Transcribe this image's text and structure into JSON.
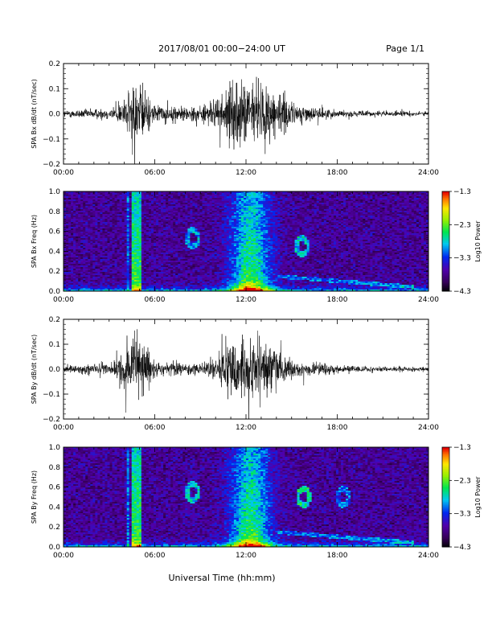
{
  "header": {
    "title": "2017/08/01   00:00−24:00 UT",
    "page": "Page 1/1"
  },
  "footer": {
    "xlabel": "Universal Time (hh:mm)"
  },
  "colors": {
    "trace": "#000000",
    "axis": "#000000"
  },
  "chart_data": [
    {
      "type": "line",
      "ylabel": "SPA Bx dB/dt (nT/sec)",
      "xlim_hours": [
        0,
        24
      ],
      "x_ticks": [
        "00:00",
        "06:00",
        "12:00",
        "18:00",
        "24:00"
      ],
      "ylim": [
        -0.2,
        0.2
      ],
      "y_ticks": [
        "0.2",
        "0.1",
        "0.0",
        "−0.1",
        "−0.2"
      ],
      "envelope": {
        "hours": [
          0,
          1,
          2,
          3,
          3.5,
          4,
          4.5,
          5,
          5.5,
          6,
          7,
          8,
          9,
          10,
          10.5,
          11,
          11.5,
          12,
          12.5,
          13,
          13.5,
          14,
          14.5,
          15,
          16,
          17,
          18,
          19,
          20,
          21,
          22,
          23,
          24
        ],
        "amplitude": [
          0.025,
          0.03,
          0.035,
          0.04,
          0.06,
          0.1,
          0.2,
          0.22,
          0.14,
          0.06,
          0.05,
          0.05,
          0.06,
          0.1,
          0.14,
          0.2,
          0.22,
          0.22,
          0.21,
          0.2,
          0.2,
          0.18,
          0.12,
          0.08,
          0.05,
          0.04,
          0.025,
          0.02,
          0.02,
          0.018,
          0.018,
          0.016,
          0.016
        ]
      }
    },
    {
      "type": "heatmap",
      "ylabel": "SPA Bx Freq (Hz)",
      "xlim_hours": [
        0,
        24
      ],
      "x_ticks": [
        "00:00",
        "06:00",
        "12:00",
        "18:00",
        "24:00"
      ],
      "ylim": [
        0,
        1.0
      ],
      "y_ticks": [
        "1.0",
        "0.8",
        "0.6",
        "0.4",
        "0.2",
        "0.0"
      ],
      "colorbar": {
        "label": "Log10 Power",
        "range": [
          -4.3,
          -1.3
        ],
        "ticks": [
          "−1.3",
          "−2.3",
          "−3.3",
          "−4.3"
        ]
      }
    },
    {
      "type": "line",
      "ylabel": "SPA By dB/dt (nT/sec)",
      "xlim_hours": [
        0,
        24
      ],
      "x_ticks": [
        "00:00",
        "06:00",
        "12:00",
        "18:00",
        "24:00"
      ],
      "ylim": [
        -0.2,
        0.2
      ],
      "y_ticks": [
        "0.2",
        "0.1",
        "0.0",
        "−0.1",
        "−0.2"
      ],
      "envelope": {
        "hours": [
          0,
          1,
          2,
          3,
          3.5,
          4,
          4.5,
          5,
          5.5,
          6,
          7,
          8,
          9,
          10,
          10.5,
          11,
          11.5,
          12,
          12.5,
          13,
          13.5,
          14,
          14.5,
          15,
          16,
          17,
          18,
          19,
          20,
          21,
          22,
          23,
          24
        ],
        "amplitude": [
          0.025,
          0.03,
          0.035,
          0.045,
          0.08,
          0.16,
          0.22,
          0.22,
          0.12,
          0.05,
          0.05,
          0.04,
          0.05,
          0.08,
          0.12,
          0.17,
          0.2,
          0.22,
          0.2,
          0.19,
          0.18,
          0.15,
          0.1,
          0.07,
          0.05,
          0.04,
          0.03,
          0.025,
          0.02,
          0.02,
          0.018,
          0.016,
          0.016
        ]
      }
    },
    {
      "type": "heatmap",
      "ylabel": "SPA By Freq (Hz)",
      "xlim_hours": [
        0,
        24
      ],
      "x_ticks": [
        "00:00",
        "06:00",
        "12:00",
        "18:00",
        "24:00"
      ],
      "ylim": [
        0,
        1.0
      ],
      "y_ticks": [
        "1.0",
        "0.8",
        "0.6",
        "0.4",
        "0.2",
        "0.0"
      ],
      "colorbar": {
        "label": "Log10 Power",
        "range": [
          -4.3,
          -1.3
        ],
        "ticks": [
          "−1.3",
          "−2.3",
          "−3.3",
          "−4.3"
        ]
      }
    }
  ]
}
